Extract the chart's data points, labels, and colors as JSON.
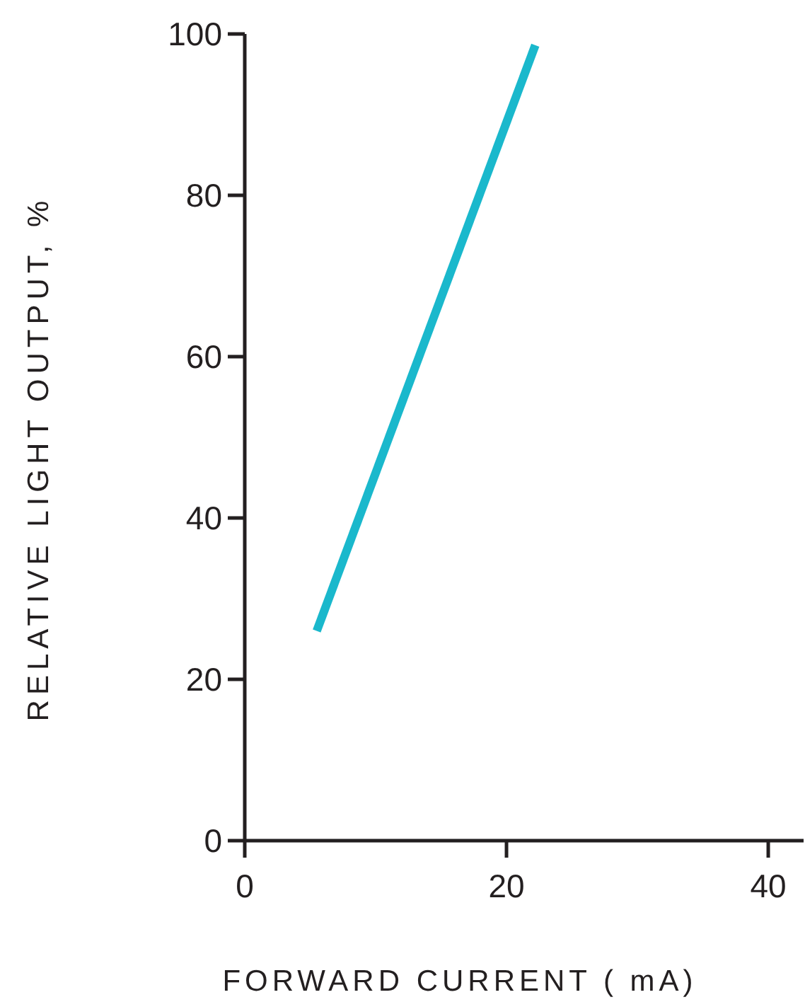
{
  "chart_data": {
    "type": "line",
    "xlabel": "FORWARD CURRENT ( mA)",
    "ylabel": "RELATIVE LIGHT OUTPUT, %",
    "xlim": [
      0,
      42.7
    ],
    "xticks": [
      0,
      20,
      40
    ],
    "ylim": [
      0,
      100
    ],
    "yticks": [
      0,
      20,
      40,
      60,
      80,
      100
    ],
    "grid": false,
    "marker": "none",
    "line_style": "solid",
    "series": [
      {
        "color": "#1ab8cc",
        "x": [
          5.5,
          22.2
        ],
        "values": [
          26,
          98.6
        ]
      }
    ]
  }
}
